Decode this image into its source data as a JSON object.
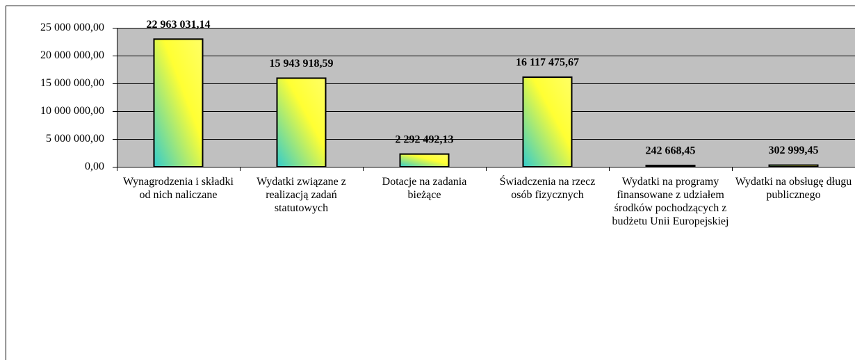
{
  "chart_data": {
    "type": "bar",
    "categories": [
      "Wynagrodzenia i składki od nich naliczane",
      "Wydatki związane z realizacją zadań statutowych",
      "Dotacje na zadania bieżące",
      "Świadczenia na rzecz osób fizycznych",
      "Wydatki na programy finansowane z udziałem środków pochodzących z budżetu Unii Europejskiej",
      "Wydatki na obsługę długu publicznego"
    ],
    "values": [
      22963031.14,
      15943918.59,
      2292492.13,
      16117475.67,
      242668.45,
      302999.45
    ],
    "value_labels": [
      "22 963 031,14",
      "15 943 918,59",
      "2 292 492,13",
      "16 117 475,67",
      "242 668,45",
      "302 999,45"
    ],
    "ylim": [
      0,
      25000000
    ],
    "yticks": [
      {
        "value": 0,
        "label": "0,00"
      },
      {
        "value": 5000000,
        "label": "5 000 000,00"
      },
      {
        "value": 10000000,
        "label": "10 000 000,00"
      },
      {
        "value": 15000000,
        "label": "15 000 000,00"
      },
      {
        "value": 20000000,
        "label": "20 000 000,00"
      },
      {
        "value": 25000000,
        "label": "25 000 000,00"
      }
    ],
    "grid": true,
    "background": "#c0c0c0"
  }
}
